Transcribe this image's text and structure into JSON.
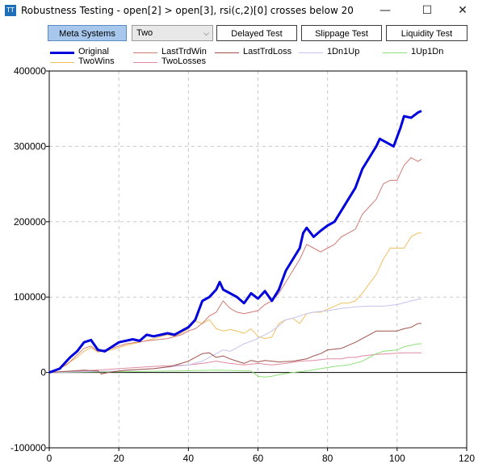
{
  "window": {
    "icon": "TT",
    "title": "Robustness Testing - open[2] > open[3], rsi(c,2)[0] crosses below 20",
    "minimize": "—",
    "maximize": "☐",
    "close": "✕"
  },
  "toolbar": {
    "meta_systems": "Meta Systems",
    "select_value": "Two",
    "delayed_test": "Delayed Test",
    "slippage_test": "Slippage Test",
    "liquidity_test": "Liquidity Test"
  },
  "colors": {
    "Original": "#0000dd",
    "LastTrdWin": "#d07a74",
    "LastTrdLoss": "#a0524a",
    "1Dn1Up": "#c4c4f0",
    "1Up1Dn": "#8ee07a",
    "TwoWins": "#f0c060",
    "TwoLosses": "#e08aa0"
  },
  "chart_data": {
    "type": "line",
    "xlim": [
      0,
      120
    ],
    "ylim": [
      -100000,
      400000
    ],
    "xticks": [
      0,
      20,
      40,
      60,
      80,
      100,
      120
    ],
    "yticks": [
      -100000,
      0,
      100000,
      200000,
      300000,
      400000
    ],
    "x_tick_labels": [
      "0",
      "20",
      "40",
      "60",
      "80",
      "100",
      "120"
    ],
    "y_tick_labels": [
      "-100000",
      "0",
      "100000",
      "200000",
      "300000",
      "400000"
    ],
    "grid": true,
    "legend": "top",
    "series": [
      {
        "name": "Original",
        "points": [
          [
            0,
            0
          ],
          [
            3,
            5000
          ],
          [
            6,
            20000
          ],
          [
            8,
            28000
          ],
          [
            10,
            40000
          ],
          [
            12,
            43000
          ],
          [
            14,
            30000
          ],
          [
            16,
            28000
          ],
          [
            20,
            40000
          ],
          [
            24,
            44000
          ],
          [
            26,
            42000
          ],
          [
            28,
            50000
          ],
          [
            30,
            48000
          ],
          [
            34,
            52000
          ],
          [
            36,
            50000
          ],
          [
            38,
            55000
          ],
          [
            40,
            60000
          ],
          [
            42,
            70000
          ],
          [
            44,
            95000
          ],
          [
            46,
            100000
          ],
          [
            48,
            110000
          ],
          [
            49,
            120000
          ],
          [
            50,
            110000
          ],
          [
            52,
            105000
          ],
          [
            54,
            100000
          ],
          [
            56,
            92000
          ],
          [
            58,
            105000
          ],
          [
            60,
            98000
          ],
          [
            62,
            108000
          ],
          [
            64,
            95000
          ],
          [
            66,
            110000
          ],
          [
            68,
            135000
          ],
          [
            70,
            150000
          ],
          [
            72,
            165000
          ],
          [
            73,
            185000
          ],
          [
            74,
            192000
          ],
          [
            76,
            180000
          ],
          [
            78,
            188000
          ],
          [
            80,
            195000
          ],
          [
            82,
            200000
          ],
          [
            84,
            215000
          ],
          [
            86,
            230000
          ],
          [
            88,
            245000
          ],
          [
            90,
            270000
          ],
          [
            92,
            285000
          ],
          [
            94,
            300000
          ],
          [
            95,
            310000
          ],
          [
            97,
            305000
          ],
          [
            99,
            300000
          ],
          [
            101,
            325000
          ],
          [
            102,
            340000
          ],
          [
            104,
            338000
          ],
          [
            106,
            345000
          ],
          [
            107,
            347000
          ]
        ]
      },
      {
        "name": "LastTrdWin",
        "points": [
          [
            0,
            0
          ],
          [
            5,
            10000
          ],
          [
            10,
            32000
          ],
          [
            12,
            35000
          ],
          [
            14,
            28000
          ],
          [
            18,
            32000
          ],
          [
            22,
            38000
          ],
          [
            28,
            42000
          ],
          [
            34,
            45000
          ],
          [
            38,
            50000
          ],
          [
            40,
            55000
          ],
          [
            42,
            58000
          ],
          [
            44,
            65000
          ],
          [
            46,
            75000
          ],
          [
            48,
            80000
          ],
          [
            50,
            95000
          ],
          [
            52,
            85000
          ],
          [
            54,
            80000
          ],
          [
            56,
            78000
          ],
          [
            58,
            80000
          ],
          [
            60,
            82000
          ],
          [
            62,
            90000
          ],
          [
            64,
            95000
          ],
          [
            66,
            105000
          ],
          [
            68,
            120000
          ],
          [
            70,
            135000
          ],
          [
            72,
            150000
          ],
          [
            74,
            170000
          ],
          [
            76,
            165000
          ],
          [
            78,
            160000
          ],
          [
            80,
            165000
          ],
          [
            82,
            170000
          ],
          [
            84,
            180000
          ],
          [
            86,
            185000
          ],
          [
            88,
            190000
          ],
          [
            90,
            210000
          ],
          [
            92,
            220000
          ],
          [
            94,
            230000
          ],
          [
            96,
            250000
          ],
          [
            98,
            255000
          ],
          [
            100,
            255000
          ],
          [
            102,
            275000
          ],
          [
            104,
            285000
          ],
          [
            106,
            280000
          ],
          [
            107,
            283000
          ]
        ]
      },
      {
        "name": "LastTrdLoss",
        "points": [
          [
            0,
            0
          ],
          [
            10,
            3000
          ],
          [
            14,
            2000
          ],
          [
            15,
            -2000
          ],
          [
            17,
            0
          ],
          [
            22,
            3000
          ],
          [
            30,
            5000
          ],
          [
            35,
            8000
          ],
          [
            40,
            15000
          ],
          [
            42,
            20000
          ],
          [
            44,
            25000
          ],
          [
            46,
            26000
          ],
          [
            48,
            20000
          ],
          [
            50,
            22000
          ],
          [
            52,
            18000
          ],
          [
            54,
            15000
          ],
          [
            56,
            12000
          ],
          [
            58,
            16000
          ],
          [
            60,
            14000
          ],
          [
            62,
            16000
          ],
          [
            66,
            14000
          ],
          [
            70,
            15000
          ],
          [
            74,
            18000
          ],
          [
            76,
            22000
          ],
          [
            78,
            25000
          ],
          [
            80,
            30000
          ],
          [
            84,
            32000
          ],
          [
            88,
            40000
          ],
          [
            90,
            45000
          ],
          [
            92,
            50000
          ],
          [
            94,
            55000
          ],
          [
            100,
            55000
          ],
          [
            102,
            58000
          ],
          [
            104,
            60000
          ],
          [
            106,
            65000
          ],
          [
            107,
            65000
          ]
        ]
      },
      {
        "name": "1Dn1Up",
        "points": [
          [
            0,
            0
          ],
          [
            20,
            2000
          ],
          [
            30,
            5000
          ],
          [
            40,
            10000
          ],
          [
            44,
            15000
          ],
          [
            48,
            25000
          ],
          [
            50,
            30000
          ],
          [
            52,
            28000
          ],
          [
            56,
            38000
          ],
          [
            60,
            45000
          ],
          [
            64,
            55000
          ],
          [
            66,
            62000
          ],
          [
            68,
            70000
          ],
          [
            70,
            72000
          ],
          [
            72,
            75000
          ],
          [
            74,
            78000
          ],
          [
            76,
            80000
          ],
          [
            80,
            82000
          ],
          [
            84,
            85000
          ],
          [
            88,
            87000
          ],
          [
            92,
            88000
          ],
          [
            96,
            88000
          ],
          [
            100,
            90000
          ],
          [
            104,
            95000
          ],
          [
            107,
            98000
          ]
        ]
      },
      {
        "name": "1Up1Dn",
        "points": [
          [
            0,
            0
          ],
          [
            20,
            1000
          ],
          [
            36,
            2000
          ],
          [
            48,
            3000
          ],
          [
            58,
            2000
          ],
          [
            60,
            -5000
          ],
          [
            62,
            -6000
          ],
          [
            64,
            -5000
          ],
          [
            66,
            -3000
          ],
          [
            70,
            0
          ],
          [
            74,
            2000
          ],
          [
            78,
            5000
          ],
          [
            82,
            8000
          ],
          [
            86,
            10000
          ],
          [
            90,
            15000
          ],
          [
            92,
            20000
          ],
          [
            94,
            25000
          ],
          [
            96,
            28000
          ],
          [
            100,
            30000
          ],
          [
            102,
            34000
          ],
          [
            104,
            36000
          ],
          [
            106,
            38000
          ],
          [
            107,
            38000
          ]
        ]
      },
      {
        "name": "TwoWins",
        "points": [
          [
            0,
            0
          ],
          [
            4,
            8000
          ],
          [
            8,
            20000
          ],
          [
            10,
            28000
          ],
          [
            12,
            33000
          ],
          [
            14,
            27000
          ],
          [
            18,
            30000
          ],
          [
            22,
            36000
          ],
          [
            26,
            40000
          ],
          [
            30,
            45000
          ],
          [
            34,
            50000
          ],
          [
            36,
            48000
          ],
          [
            38,
            52000
          ],
          [
            40,
            58000
          ],
          [
            42,
            68000
          ],
          [
            44,
            65000
          ],
          [
            46,
            70000
          ],
          [
            48,
            58000
          ],
          [
            50,
            55000
          ],
          [
            52,
            57000
          ],
          [
            54,
            55000
          ],
          [
            56,
            52000
          ],
          [
            58,
            58000
          ],
          [
            60,
            48000
          ],
          [
            62,
            45000
          ],
          [
            64,
            47000
          ],
          [
            66,
            65000
          ],
          [
            68,
            70000
          ],
          [
            70,
            72000
          ],
          [
            72,
            65000
          ],
          [
            74,
            78000
          ],
          [
            76,
            80000
          ],
          [
            78,
            80000
          ],
          [
            82,
            88000
          ],
          [
            84,
            92000
          ],
          [
            86,
            92000
          ],
          [
            88,
            95000
          ],
          [
            90,
            105000
          ],
          [
            92,
            118000
          ],
          [
            94,
            130000
          ],
          [
            96,
            150000
          ],
          [
            98,
            165000
          ],
          [
            100,
            165000
          ],
          [
            102,
            165000
          ],
          [
            104,
            180000
          ],
          [
            106,
            185000
          ],
          [
            107,
            185000
          ]
        ]
      },
      {
        "name": "TwoLosses",
        "points": [
          [
            0,
            0
          ],
          [
            10,
            2000
          ],
          [
            20,
            5000
          ],
          [
            30,
            8000
          ],
          [
            40,
            10000
          ],
          [
            44,
            12000
          ],
          [
            48,
            15000
          ],
          [
            52,
            12000
          ],
          [
            56,
            10000
          ],
          [
            60,
            12000
          ],
          [
            64,
            10000
          ],
          [
            68,
            12000
          ],
          [
            72,
            15000
          ],
          [
            76,
            16000
          ],
          [
            80,
            18000
          ],
          [
            84,
            18000
          ],
          [
            86,
            20000
          ],
          [
            88,
            20000
          ],
          [
            90,
            22000
          ],
          [
            94,
            24000
          ],
          [
            98,
            25000
          ],
          [
            102,
            26000
          ],
          [
            107,
            26000
          ]
        ]
      }
    ]
  }
}
